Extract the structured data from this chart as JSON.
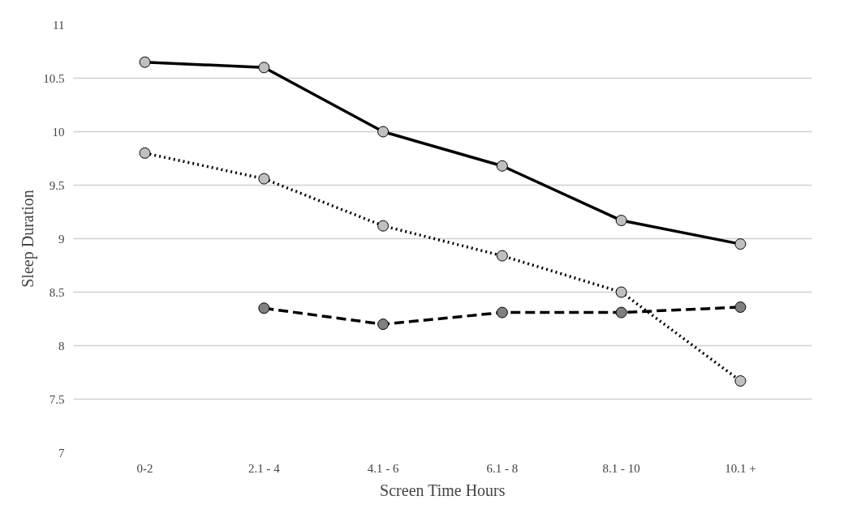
{
  "chart_data": {
    "type": "line",
    "xlabel": "Screen Time Hours",
    "ylabel": "Sleep Duration",
    "categories": [
      "0-2",
      "2.1 - 4",
      "4.1 - 6",
      "6.1 - 8",
      "8.1 - 10",
      "10.1 +"
    ],
    "series": [
      {
        "color": "#000000",
        "line_style": "solid",
        "colors": [
          "#c0c0c0",
          "#c0c0c0",
          "#c0c0c0",
          "#c0c0c0",
          "#c0c0c0",
          "#c0c0c0"
        ],
        "values": [
          10.65,
          10.6,
          10.0,
          9.68,
          9.17,
          8.95
        ]
      },
      {
        "color": "#000000",
        "line_style": "dotted",
        "colors": [
          "#c0c0c0",
          "#c0c0c0",
          "#c0c0c0",
          "#c0c0c0",
          "#c0c0c0",
          "#c0c0c0"
        ],
        "values": [
          9.8,
          9.56,
          9.12,
          8.84,
          8.5,
          7.67
        ]
      },
      {
        "color": "#000000",
        "line_style": "dashed",
        "colors": [
          null,
          "#808080",
          "#808080",
          "#808080",
          "#808080",
          "#808080"
        ],
        "values": [
          null,
          8.35,
          8.2,
          8.31,
          8.31,
          8.36
        ]
      }
    ],
    "ylim": [
      7,
      11
    ],
    "yticks": [
      7,
      7.5,
      8,
      8.5,
      9,
      9.5,
      10,
      10.5,
      11
    ],
    "grid": "y",
    "marker": "circle"
  }
}
